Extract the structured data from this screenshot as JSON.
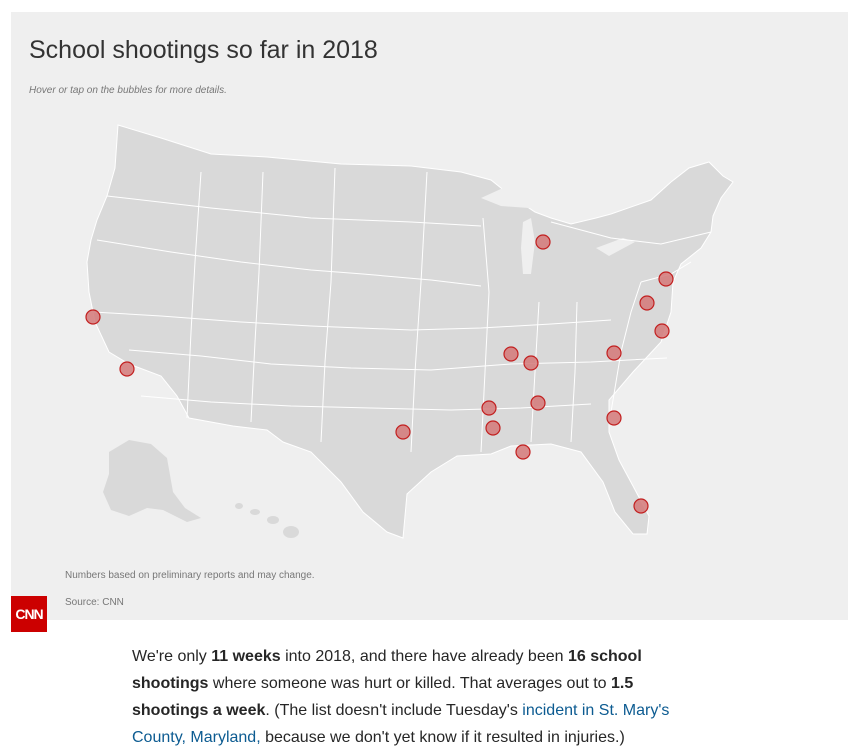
{
  "graphic": {
    "title": "School shootings so far in 2018",
    "subtitle": "Hover or tap on the bubbles for more details.",
    "note": "Numbers based on preliminary reports and may change.",
    "source": "Source: CNN",
    "logo": "CNN",
    "colors": {
      "bubble_fill": "#d47878",
      "bubble_stroke": "#c21f1f",
      "land": "#d9d9d9",
      "background": "#efefef",
      "logo": "#cc0000"
    }
  },
  "article": {
    "t1": "We're only ",
    "b1": "11 weeks",
    "t2": " into 2018, and there have already been ",
    "b2": "16 school shootings",
    "t3": " where someone was hurt or killed. That averages out to ",
    "b3": "1.5 shootings a week",
    "t4": ". (The list doesn't include Tuesday's ",
    "link": "incident in St. Mary's County, Maryland,",
    "t5": " because we don't yet know if it resulted in injuries.)"
  }
}
